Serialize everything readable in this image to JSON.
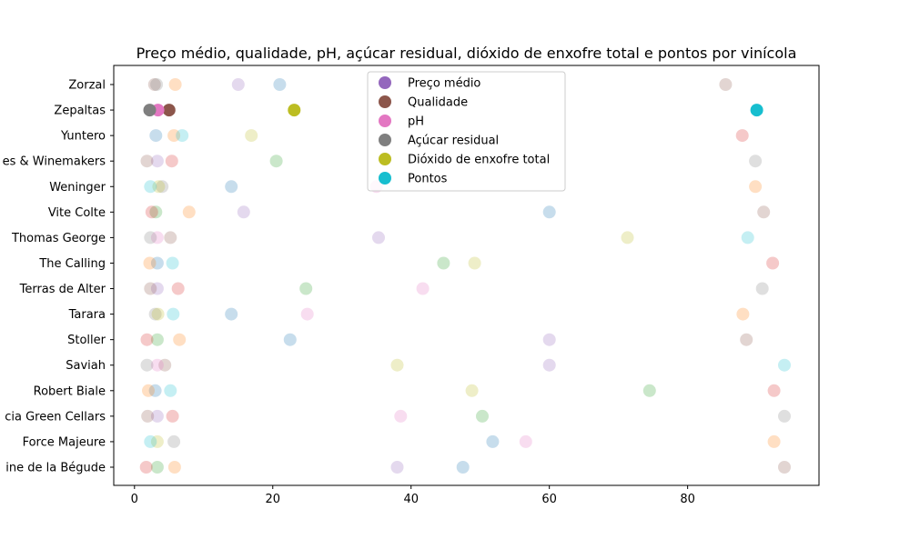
{
  "chart_data": {
    "type": "scatter",
    "title": "Preço médio, qualidade, pH, açúcar residual, dióxido de enxofre total e pontos por vinícola",
    "xlabel": "",
    "ylabel": "",
    "xlim": [
      -3,
      99
    ],
    "xticks": [
      0,
      20,
      40,
      60,
      80
    ],
    "grid": false,
    "legend_position": "top-center",
    "categories": [
      "Domaine de la Bégude",
      "Force Majeure",
      "Acacia Green Cellars",
      "Robert Biale",
      "Saviah",
      "Stoller",
      "Tarara",
      "Terras de Alter",
      "The Calling",
      "Thomas George",
      "Vite Colte",
      "Weninger",
      "Westwood Estates & Winemakers",
      "Yuntero",
      "Zepaltas",
      "Zorzal"
    ],
    "category_tick_labels": [
      "ine de la Bégude",
      "Force Majeure",
      "cia Green Cellars",
      "Robert Biale",
      "Saviah",
      "Stoller",
      "Tarara",
      "Terras de Alter",
      "The Calling",
      "Thomas George",
      "Vite Colte",
      "Weninger",
      "es & Winemakers",
      "Yuntero",
      "Zepaltas",
      "Zorzal"
    ],
    "series": [
      {
        "name": "Preço médio",
        "color": "#9467bd"
      },
      {
        "name": "Qualidade",
        "color": "#8c564b"
      },
      {
        "name": "pH",
        "color": "#e377c2"
      },
      {
        "name": "Açúcar residual",
        "color": "#7f7f7f"
      },
      {
        "name": "Dióxido de enxofre total",
        "color": "#bcbd22"
      },
      {
        "name": "Pontos",
        "color": "#17becf"
      }
    ],
    "palette": [
      "#1f77b4",
      "#ff7f0e",
      "#2ca02c",
      "#d62728",
      "#9467bd",
      "#8c564b",
      "#e377c2",
      "#7f7f7f",
      "#bcbd22",
      "#17becf"
    ],
    "faded_alpha": 0.25,
    "points": [
      {
        "category": "Domaine de la Bégude",
        "x": 47.5,
        "color_index": 0
      },
      {
        "category": "Domaine de la Bégude",
        "x": 5.8,
        "color_index": 1
      },
      {
        "category": "Domaine de la Bégude",
        "x": 3.3,
        "color_index": 2
      },
      {
        "category": "Domaine de la Bégude",
        "x": 1.7,
        "color_index": 3
      },
      {
        "category": "Domaine de la Bégude",
        "x": 38.0,
        "color_index": 4
      },
      {
        "category": "Domaine de la Bégude",
        "x": 94.0,
        "color_index": 5
      },
      {
        "category": "Force Majeure",
        "x": 51.8,
        "color_index": 0
      },
      {
        "category": "Force Majeure",
        "x": 92.5,
        "color_index": 1
      },
      {
        "category": "Force Majeure",
        "x": 56.6,
        "color_index": 6
      },
      {
        "category": "Force Majeure",
        "x": 5.7,
        "color_index": 7
      },
      {
        "category": "Force Majeure",
        "x": 3.3,
        "color_index": 8
      },
      {
        "category": "Force Majeure",
        "x": 2.3,
        "color_index": 9
      },
      {
        "category": "Acacia Green Cellars",
        "x": 50.3,
        "color_index": 2
      },
      {
        "category": "Acacia Green Cellars",
        "x": 5.5,
        "color_index": 3
      },
      {
        "category": "Acacia Green Cellars",
        "x": 3.3,
        "color_index": 4
      },
      {
        "category": "Acacia Green Cellars",
        "x": 1.9,
        "color_index": 5
      },
      {
        "category": "Acacia Green Cellars",
        "x": 38.5,
        "color_index": 6
      },
      {
        "category": "Acacia Green Cellars",
        "x": 94.0,
        "color_index": 7
      },
      {
        "category": "Robert Biale",
        "x": 3.0,
        "color_index": 0
      },
      {
        "category": "Robert Biale",
        "x": 2.0,
        "color_index": 1
      },
      {
        "category": "Robert Biale",
        "x": 74.5,
        "color_index": 2
      },
      {
        "category": "Robert Biale",
        "x": 92.5,
        "color_index": 3
      },
      {
        "category": "Robert Biale",
        "x": 48.8,
        "color_index": 8
      },
      {
        "category": "Robert Biale",
        "x": 5.2,
        "color_index": 9
      },
      {
        "category": "Saviah",
        "x": 60.0,
        "color_index": 4
      },
      {
        "category": "Saviah",
        "x": 4.4,
        "color_index": 5
      },
      {
        "category": "Saviah",
        "x": 3.3,
        "color_index": 6
      },
      {
        "category": "Saviah",
        "x": 1.8,
        "color_index": 7
      },
      {
        "category": "Saviah",
        "x": 38.0,
        "color_index": 8
      },
      {
        "category": "Saviah",
        "x": 94.0,
        "color_index": 9
      },
      {
        "category": "Stoller",
        "x": 22.5,
        "color_index": 0
      },
      {
        "category": "Stoller",
        "x": 6.5,
        "color_index": 1
      },
      {
        "category": "Stoller",
        "x": 3.3,
        "color_index": 2
      },
      {
        "category": "Stoller",
        "x": 1.8,
        "color_index": 3
      },
      {
        "category": "Stoller",
        "x": 60.0,
        "color_index": 4
      },
      {
        "category": "Stoller",
        "x": 88.5,
        "color_index": 5
      },
      {
        "category": "Tarara",
        "x": 14.0,
        "color_index": 0
      },
      {
        "category": "Tarara",
        "x": 88.0,
        "color_index": 1
      },
      {
        "category": "Tarara",
        "x": 25.0,
        "color_index": 6
      },
      {
        "category": "Tarara",
        "x": 3.0,
        "color_index": 7
      },
      {
        "category": "Tarara",
        "x": 3.4,
        "color_index": 8
      },
      {
        "category": "Tarara",
        "x": 5.6,
        "color_index": 9
      },
      {
        "category": "Terras de Alter",
        "x": 24.8,
        "color_index": 2
      },
      {
        "category": "Terras de Alter",
        "x": 6.3,
        "color_index": 3
      },
      {
        "category": "Terras de Alter",
        "x": 3.3,
        "color_index": 4
      },
      {
        "category": "Terras de Alter",
        "x": 2.3,
        "color_index": 5
      },
      {
        "category": "Terras de Alter",
        "x": 41.7,
        "color_index": 6
      },
      {
        "category": "Terras de Alter",
        "x": 90.8,
        "color_index": 7
      },
      {
        "category": "The Calling",
        "x": 3.3,
        "color_index": 0
      },
      {
        "category": "The Calling",
        "x": 2.2,
        "color_index": 1
      },
      {
        "category": "The Calling",
        "x": 44.7,
        "color_index": 2
      },
      {
        "category": "The Calling",
        "x": 92.3,
        "color_index": 3
      },
      {
        "category": "The Calling",
        "x": 49.2,
        "color_index": 8
      },
      {
        "category": "The Calling",
        "x": 5.5,
        "color_index": 9
      },
      {
        "category": "Thomas George",
        "x": 35.3,
        "color_index": 4
      },
      {
        "category": "Thomas George",
        "x": 5.2,
        "color_index": 5
      },
      {
        "category": "Thomas George",
        "x": 3.3,
        "color_index": 6
      },
      {
        "category": "Thomas George",
        "x": 2.3,
        "color_index": 7
      },
      {
        "category": "Thomas George",
        "x": 71.3,
        "color_index": 8
      },
      {
        "category": "Thomas George",
        "x": 88.7,
        "color_index": 9
      },
      {
        "category": "Vite Colte",
        "x": 60.0,
        "color_index": 0
      },
      {
        "category": "Vite Colte",
        "x": 7.9,
        "color_index": 1
      },
      {
        "category": "Vite Colte",
        "x": 3.1,
        "color_index": 2
      },
      {
        "category": "Vite Colte",
        "x": 2.5,
        "color_index": 3
      },
      {
        "category": "Vite Colte",
        "x": 15.8,
        "color_index": 4
      },
      {
        "category": "Vite Colte",
        "x": 91.0,
        "color_index": 5
      },
      {
        "category": "Weninger",
        "x": 14.0,
        "color_index": 0
      },
      {
        "category": "Weninger",
        "x": 89.8,
        "color_index": 1
      },
      {
        "category": "Weninger",
        "x": 35.0,
        "color_index": 6
      },
      {
        "category": "Weninger",
        "x": 4.0,
        "color_index": 7
      },
      {
        "category": "Weninger",
        "x": 3.5,
        "color_index": 8
      },
      {
        "category": "Weninger",
        "x": 2.3,
        "color_index": 9
      },
      {
        "category": "Westwood Estates & Winemakers",
        "x": 20.5,
        "color_index": 2
      },
      {
        "category": "Westwood Estates & Winemakers",
        "x": 5.4,
        "color_index": 3
      },
      {
        "category": "Westwood Estates & Winemakers",
        "x": 3.3,
        "color_index": 4
      },
      {
        "category": "Westwood Estates & Winemakers",
        "x": 1.8,
        "color_index": 5
      },
      {
        "category": "Westwood Estates & Winemakers",
        "x": 89.8,
        "color_index": 7
      },
      {
        "category": "Yuntero",
        "x": 3.1,
        "color_index": 0
      },
      {
        "category": "Yuntero",
        "x": 5.7,
        "color_index": 1
      },
      {
        "category": "Yuntero",
        "x": 87.9,
        "color_index": 3
      },
      {
        "category": "Yuntero",
        "x": 16.9,
        "color_index": 8
      },
      {
        "category": "Yuntero",
        "x": 6.9,
        "color_index": 9
      },
      {
        "category": "Zepaltas",
        "x": 5.0,
        "color_index": 5,
        "alpha": 1.0
      },
      {
        "category": "Zepaltas",
        "x": 3.4,
        "color_index": 6,
        "alpha": 1.0
      },
      {
        "category": "Zepaltas",
        "x": 2.2,
        "color_index": 7,
        "alpha": 1.0
      },
      {
        "category": "Zepaltas",
        "x": 23.1,
        "color_index": 8,
        "alpha": 1.0
      },
      {
        "category": "Zepaltas",
        "x": 90.0,
        "color_index": 9,
        "alpha": 1.0
      },
      {
        "category": "Zorzal",
        "x": 21.0,
        "color_index": 0
      },
      {
        "category": "Zorzal",
        "x": 5.9,
        "color_index": 1
      },
      {
        "category": "Zorzal",
        "x": 15.0,
        "color_index": 4
      },
      {
        "category": "Zorzal",
        "x": 2.9,
        "color_index": 5
      },
      {
        "category": "Zorzal",
        "x": 3.2,
        "color_index": 7
      },
      {
        "category": "Zorzal",
        "x": 85.5,
        "color_index": 5
      }
    ]
  }
}
